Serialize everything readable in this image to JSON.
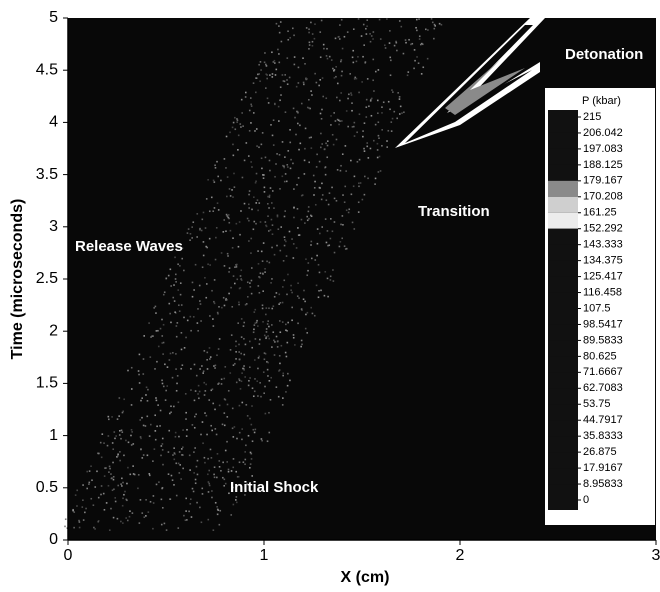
{
  "chart_data": {
    "type": "contour",
    "x_label": "X (cm)",
    "y_label": "Time (microseconds)",
    "xlim": [
      0,
      3
    ],
    "xticks": [
      0,
      1,
      2,
      3
    ],
    "ylim": [
      0,
      5
    ],
    "yticks": [
      0,
      0.5,
      1,
      1.5,
      2,
      2.5,
      3,
      3.5,
      4,
      4.5,
      5
    ],
    "annotations": [
      "Detonation",
      "Transition",
      "Release Waves",
      "Initial Shock"
    ],
    "colorbar": {
      "title": "P (kbar)",
      "ticks": [
        215,
        206.042,
        197.083,
        188.125,
        179.167,
        170.208,
        161.25,
        152.292,
        143.333,
        134.375,
        125.417,
        116.458,
        107.5,
        98.5417,
        89.5833,
        80.625,
        71.6667,
        62.7083,
        53.75,
        44.7917,
        35.8333,
        26.875,
        17.9167,
        8.95833,
        0
      ],
      "colors": [
        "#111111",
        "#111111",
        "#111111",
        "#111111",
        "#8a8a8a",
        "#cfcfcf",
        "#ececec",
        "#111111",
        "#111111",
        "#111111",
        "#111111",
        "#111111",
        "#111111",
        "#111111",
        "#111111",
        "#111111",
        "#111111",
        "#111111",
        "#111111",
        "#111111",
        "#111111",
        "#111111",
        "#111111",
        "#111111"
      ]
    }
  }
}
